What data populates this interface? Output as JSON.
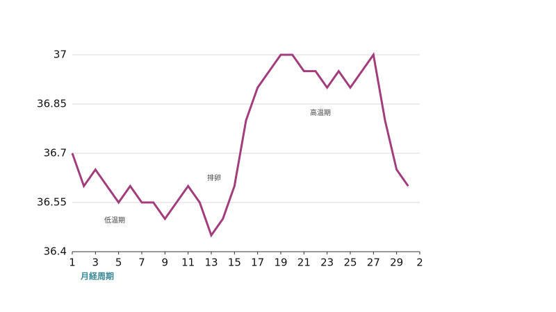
{
  "chart_data": {
    "type": "line",
    "x": [
      1,
      2,
      3,
      4,
      5,
      6,
      7,
      8,
      9,
      10,
      11,
      12,
      13,
      14,
      15,
      16,
      17,
      18,
      19,
      20,
      21,
      22,
      23,
      24,
      25,
      26,
      27,
      28,
      29,
      30
    ],
    "series": [
      {
        "color": "#a23d7c",
        "values": [
          36.7,
          36.6,
          36.65,
          36.6,
          36.55,
          36.6,
          36.55,
          36.55,
          36.5,
          36.55,
          36.6,
          36.55,
          36.45,
          36.5,
          36.6,
          36.8,
          36.9,
          36.95,
          37,
          37,
          36.95,
          36.95,
          36.9,
          36.95,
          36.9,
          36.95,
          37,
          36.8,
          36.65,
          36.6
        ]
      }
    ],
    "xlim": [
      1,
      31
    ],
    "xticks": [
      1,
      3,
      5,
      7,
      9,
      11,
      13,
      15,
      17,
      19,
      21,
      23,
      25,
      27,
      29,
      {
        "value": 31,
        "label": "2"
      }
    ],
    "ylim": [
      36.4,
      37
    ],
    "yticks": [
      36.4,
      36.55,
      36.7,
      36.85,
      37
    ],
    "grid": true,
    "x_label": "月経周期",
    "annotations": [
      "低温期",
      "排卵",
      "高温期"
    ]
  }
}
